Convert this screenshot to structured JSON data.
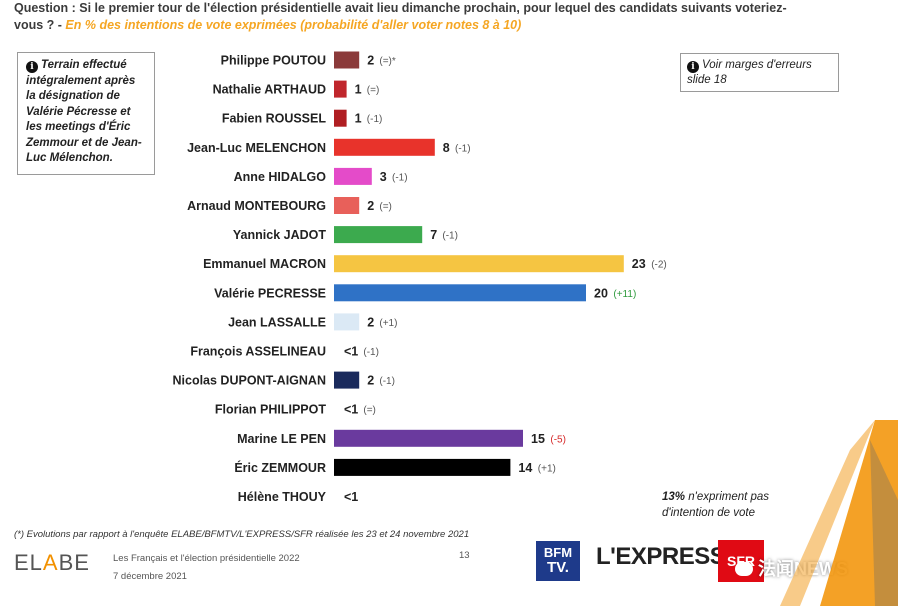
{
  "question": {
    "main": "Question : Si le premier tour de l'élection présidentielle avait lieu dimanche prochain, pour lequel des candidats suivants voteriez-vous ? -",
    "sub": "En % des intentions de vote exprimées (probabilité d'aller voter notes 8 à 10)"
  },
  "note_box": {
    "icon": "info-icon",
    "text": "Terrain effectué intégralement après la désignation de Valérie Pécresse et les meetings d'Éric Zemmour et de Jean-Luc Mélenchon."
  },
  "margin_box": {
    "icon": "info-icon",
    "text": "Voir marges d'erreurs slide 18"
  },
  "chart_data": {
    "type": "bar",
    "orientation": "horizontal",
    "categories": [
      "Philippe POUTOU",
      "Nathalie ARTHAUD",
      "Fabien ROUSSEL",
      "Jean-Luc MELENCHON",
      "Anne HIDALGO",
      "Arnaud MONTEBOURG",
      "Yannick JADOT",
      "Emmanuel MACRON",
      "Valérie PECRESSE",
      "Jean LASSALLE",
      "François ASSELINEAU",
      "Nicolas DUPONT-AIGNAN",
      "Florian PHILIPPOT",
      "Marine LE PEN",
      "Éric ZEMMOUR",
      "Hélène THOUY"
    ],
    "values": [
      2,
      1,
      1,
      8,
      3,
      2,
      7,
      23,
      20,
      2,
      0,
      2,
      0,
      15,
      14,
      0
    ],
    "value_labels": [
      "2",
      "1",
      "1",
      "8",
      "3",
      "2",
      "7",
      "23",
      "20",
      "2",
      "<1",
      "2",
      "<1",
      "15",
      "14",
      "<1"
    ],
    "changes": [
      "(=)*",
      "(=)",
      "(-1)",
      "(-1)",
      "(-1)",
      "(=)",
      "(-1)",
      "(-2)",
      "(+11)",
      "(+1)",
      "(-1)",
      "(-1)",
      "(=)",
      "(-5)",
      "(+1)",
      ""
    ],
    "colors": [
      "#8b3a3a",
      "#c0262c",
      "#b01e22",
      "#e8332b",
      "#e44bc9",
      "#e8605a",
      "#3caa4e",
      "#f5c542",
      "#2f72c6",
      "#dbe9f5",
      "#ffffff",
      "#1a2a5c",
      "#ffffff",
      "#6a3a9e",
      "#000000",
      "#ffffff"
    ],
    "change_colors": [
      "#555555",
      "#555555",
      "#555555",
      "#555555",
      "#555555",
      "#555555",
      "#555555",
      "#555555",
      "#2e9a3c",
      "#555555",
      "#555555",
      "#555555",
      "#555555",
      "#d62828",
      "#555555",
      "#555555"
    ],
    "unit": "%"
  },
  "undecided": {
    "value": "13%",
    "text": "n'expriment pas d'intention de vote"
  },
  "footnote": "(*) Evolutions par rapport à l'enquête ELABE/BFMTV/L'EXPRESS/SFR réalisée les 23 et 24 novembre 2021",
  "footer": {
    "brand_a": "EL",
    "brand_b": "A",
    "brand_c": "BE",
    "title": "Les Français et l'élection présidentielle 2022",
    "date": "7 décembre 2021",
    "page": "13"
  },
  "logos": {
    "bfm_1": "BFM",
    "bfm_2": "TV.",
    "lexpress": "L'EXPRESS",
    "sfr": "SFR"
  },
  "watermark": "法闻NEWS"
}
